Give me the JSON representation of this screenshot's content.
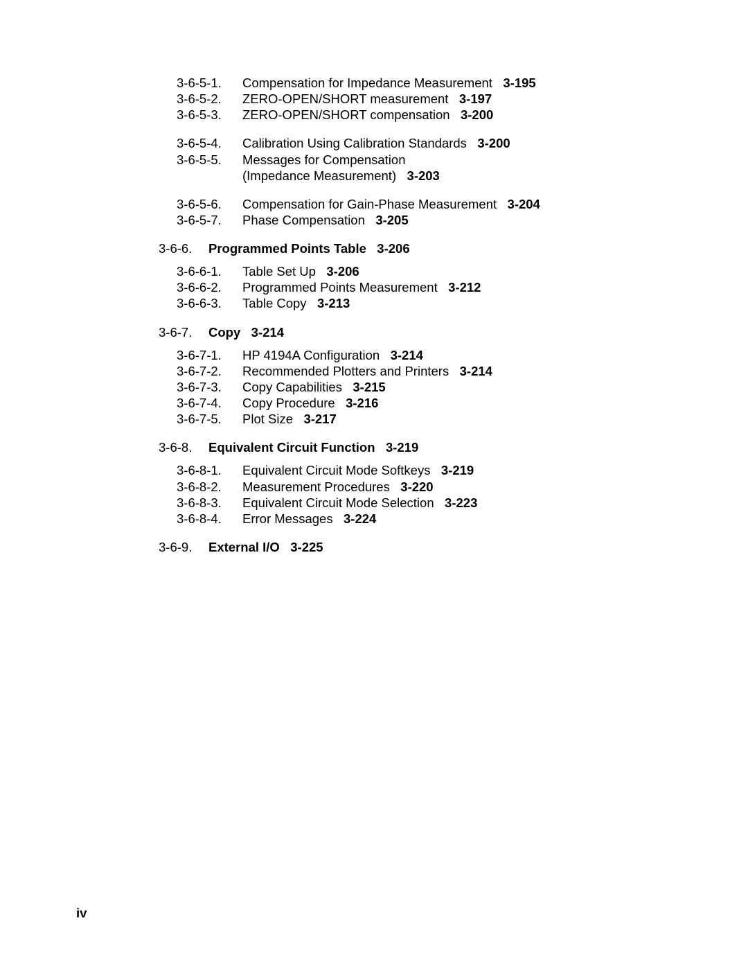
{
  "toc": {
    "group1": [
      {
        "num": "3-6-5-1.",
        "title": "Compensation for Impedance Measurement",
        "page": "3-195"
      },
      {
        "num": "3-6-5-2.",
        "title": "ZERO-OPEN/SHORT measurement",
        "page": "3-197"
      },
      {
        "num": "3-6-5-3.",
        "title": "ZERO-OPEN/SHORT compensation",
        "page": "3-200"
      }
    ],
    "group2": [
      {
        "num": "3-6-5-4.",
        "title": "Calibration Using Calibration Standards",
        "page": "3-200"
      },
      {
        "num": "3-6-5-5.",
        "title_line1": "Messages for Compensation",
        "title_line2": "(Impedance Measurement)",
        "page": "3-203"
      }
    ],
    "group3": [
      {
        "num": "3-6-5-6.",
        "title": "Compensation for Gain-Phase Measurement",
        "page": "3-204"
      },
      {
        "num": "3-6-5-7.",
        "title": "Phase Compensation",
        "page": "3-205"
      }
    ],
    "section366": {
      "num": "3-6-6.",
      "title": "Programmed Points Table",
      "page": "3-206"
    },
    "group4": [
      {
        "num": "3-6-6-1.",
        "title": "Table Set Up",
        "page": "3-206"
      },
      {
        "num": "3-6-6-2.",
        "title": "Programmed Points Measurement",
        "page": "3-212"
      },
      {
        "num": "3-6-6-3.",
        "title": "Table Copy",
        "page": "3-213"
      }
    ],
    "section367": {
      "num": "3-6-7.",
      "title": "Copy",
      "page": "3-214"
    },
    "group5": [
      {
        "num": "3-6-7-1.",
        "title": "HP 4194A Configuration",
        "page": "3-214"
      },
      {
        "num": "3-6-7-2.",
        "title": "Recommended Plotters and Printers",
        "page": "3-214"
      },
      {
        "num": "3-6-7-3.",
        "title": "Copy Capabilities",
        "page": "3-215"
      },
      {
        "num": "3-6-7-4.",
        "title": "Copy Procedure",
        "page": "3-216"
      },
      {
        "num": "3-6-7-5.",
        "title": "Plot Size",
        "page": "3-217"
      }
    ],
    "section368": {
      "num": "3-6-8.",
      "title": "Equivalent Circuit Function",
      "page": "3-219"
    },
    "group6": [
      {
        "num": "3-6-8-1.",
        "title": "Equivalent Circuit Mode Softkeys",
        "page": "3-219"
      },
      {
        "num": "3-6-8-2.",
        "title": "Measurement Procedures",
        "page": "3-220"
      },
      {
        "num": "3-6-8-3.",
        "title": "Equivalent Circuit Mode Selection",
        "page": "3-223"
      },
      {
        "num": "3-6-8-4.",
        "title": "Error Messages",
        "page": "3-224"
      }
    ],
    "section369": {
      "num": "3-6-9.",
      "title": "External I/O",
      "page": "3-225"
    }
  },
  "pageNumber": "iv"
}
